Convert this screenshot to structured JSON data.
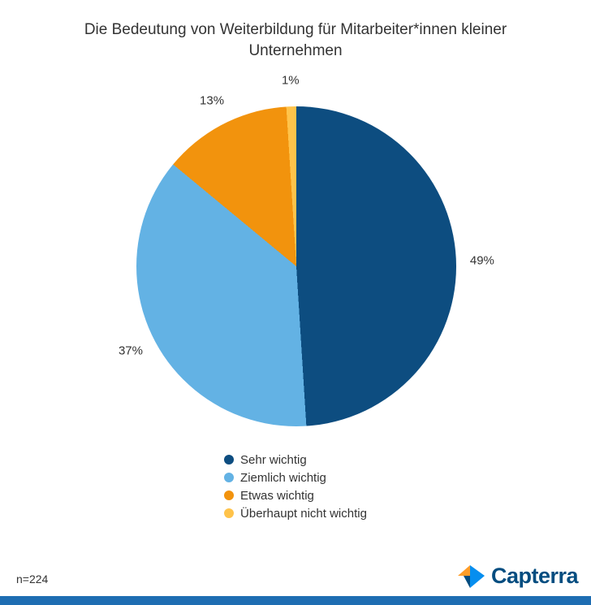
{
  "title": "Die Bedeutung von Weiterbildung für Mitarbeiter*innen kleiner Unternehmen",
  "footnote": "n=224",
  "brand": {
    "name": "Capterra",
    "text_color": "#044D80",
    "mark_orange": "#FF9D28",
    "mark_blue": "#068EEF",
    "mark_navy": "#044D80"
  },
  "footer_bar_color": "#1E6DB2",
  "chart_data": {
    "type": "pie",
    "title": "Die Bedeutung von Weiterbildung für Mitarbeiter*innen kleiner Unternehmen",
    "categories": [
      "Sehr wichtig",
      "Ziemlich wichtig",
      "Etwas wichtig",
      "Überhaupt nicht wichtig"
    ],
    "values": [
      49,
      37,
      13,
      1
    ],
    "labels": [
      "49%",
      "37%",
      "13%",
      "1%"
    ],
    "unit": "%",
    "colors": [
      "#0D4D80",
      "#63B2E4",
      "#F2930D",
      "#FFC34A"
    ],
    "start_angle_deg": 0,
    "direction": "clockwise",
    "legend_position": "bottom",
    "sample_note": "n=224"
  }
}
